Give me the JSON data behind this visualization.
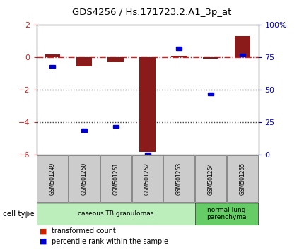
{
  "title": "GDS4256 / Hs.171723.2.A1_3p_at",
  "samples": [
    "GSM501249",
    "GSM501250",
    "GSM501251",
    "GSM501252",
    "GSM501253",
    "GSM501254",
    "GSM501255"
  ],
  "red_values": [
    0.18,
    -0.55,
    -0.28,
    -5.82,
    0.12,
    -0.08,
    1.32
  ],
  "blue_values_pct": [
    68,
    19,
    22,
    1,
    82,
    47,
    77
  ],
  "ylim": [
    -6,
    2
  ],
  "yticks_left": [
    -6,
    -4,
    -2,
    0,
    2
  ],
  "yticks_right_vals": [
    0,
    25,
    50,
    75,
    100
  ],
  "hline_y": 0,
  "dotted_lines": [
    -2,
    -4
  ],
  "cell_type_groups": [
    {
      "label": "caseous TB granulomas",
      "start": 0,
      "end": 5,
      "color": "#bbeebb"
    },
    {
      "label": "normal lung\nparenchyma",
      "start": 5,
      "end": 7,
      "color": "#66cc66"
    }
  ],
  "legend_items": [
    {
      "color": "#cc2200",
      "label": "transformed count"
    },
    {
      "color": "#0000cc",
      "label": "percentile rank within the sample"
    }
  ],
  "bar_color": "#8b1a1a",
  "square_color": "#0000cc",
  "zero_line_color": "#cc2222",
  "dotted_line_color": "#444444",
  "axis_bg": "#ffffff",
  "tick_label_color_left": "#cc2222",
  "tick_label_color_right": "#0000cc",
  "box_facecolor": "#cccccc",
  "box_edgecolor": "#888888"
}
